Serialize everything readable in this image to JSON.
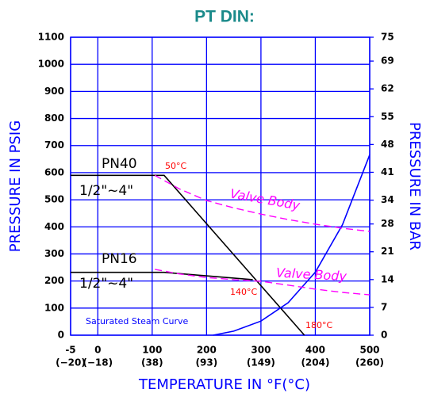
{
  "chart_data": {
    "type": "line",
    "title": "PT DIN:",
    "xlabel": "TEMPERATURE IN °F(°C)",
    "ylabel": "PRESSURE IN PSIG",
    "y2label": "PRESSURE IN BAR",
    "xlim": [
      -5,
      500
    ],
    "xticks": [
      -5,
      0,
      100,
      200,
      300,
      400,
      500
    ],
    "xticks_celsius": [
      "(−20)",
      "(−18)",
      "(38)",
      "(93)",
      "(149)",
      "(204)",
      "(260)"
    ],
    "ylim": [
      0,
      1100
    ],
    "yticks": [
      0,
      100,
      200,
      300,
      400,
      500,
      600,
      700,
      800,
      900,
      1000,
      1100
    ],
    "y2lim": [
      0,
      75
    ],
    "y2ticks": [
      0,
      7,
      14,
      21,
      28,
      34,
      41,
      48,
      55,
      62,
      69,
      75
    ],
    "grid": true,
    "grid_color": "#0000ff",
    "series": [
      {
        "color": "#000000",
        "dash": false,
        "x": [
          -5,
          122,
          380
        ],
        "values": [
          590,
          590,
          0
        ]
      },
      {
        "color": "#000000",
        "dash": false,
        "x": [
          -5,
          122,
          285
        ],
        "values": [
          232,
          232,
          205
        ]
      },
      {
        "color": "#0000ff",
        "dash": false,
        "x": [
          212,
          250,
          300,
          350,
          400,
          450,
          500
        ],
        "values": [
          0,
          15,
          52,
          120,
          233,
          408,
          666
        ]
      },
      {
        "color": "#ff00ff",
        "dash": true,
        "x": [
          105,
          150,
          200,
          250,
          300,
          350,
          400,
          450,
          500
        ],
        "values": [
          590,
          540,
          497,
          470,
          447,
          427,
          410,
          395,
          383
        ]
      },
      {
        "color": "#ff00ff",
        "dash": true,
        "x": [
          105,
          150,
          200,
          250,
          300,
          350,
          400,
          450,
          500
        ],
        "values": [
          243,
          226,
          213,
          205,
          199,
          185,
          170,
          158,
          149
        ]
      }
    ],
    "annotations": [
      {
        "text": "PN40",
        "color": "#000000"
      },
      {
        "text": "1/2\"~4\"",
        "color": "#000000"
      },
      {
        "text": "50°C",
        "color": "#ff0000"
      },
      {
        "text": "Valve Body",
        "color": "#ff00ff"
      },
      {
        "text": "PN16",
        "color": "#000000"
      },
      {
        "text": "1/2\"~4\"",
        "color": "#000000"
      },
      {
        "text": "140°C",
        "color": "#ff0000"
      },
      {
        "text": "Valve Body",
        "color": "#ff00ff"
      },
      {
        "text": "180°C",
        "color": "#ff0000"
      },
      {
        "text": "Saturated Steam Curve",
        "color": "#0000ff"
      }
    ]
  }
}
